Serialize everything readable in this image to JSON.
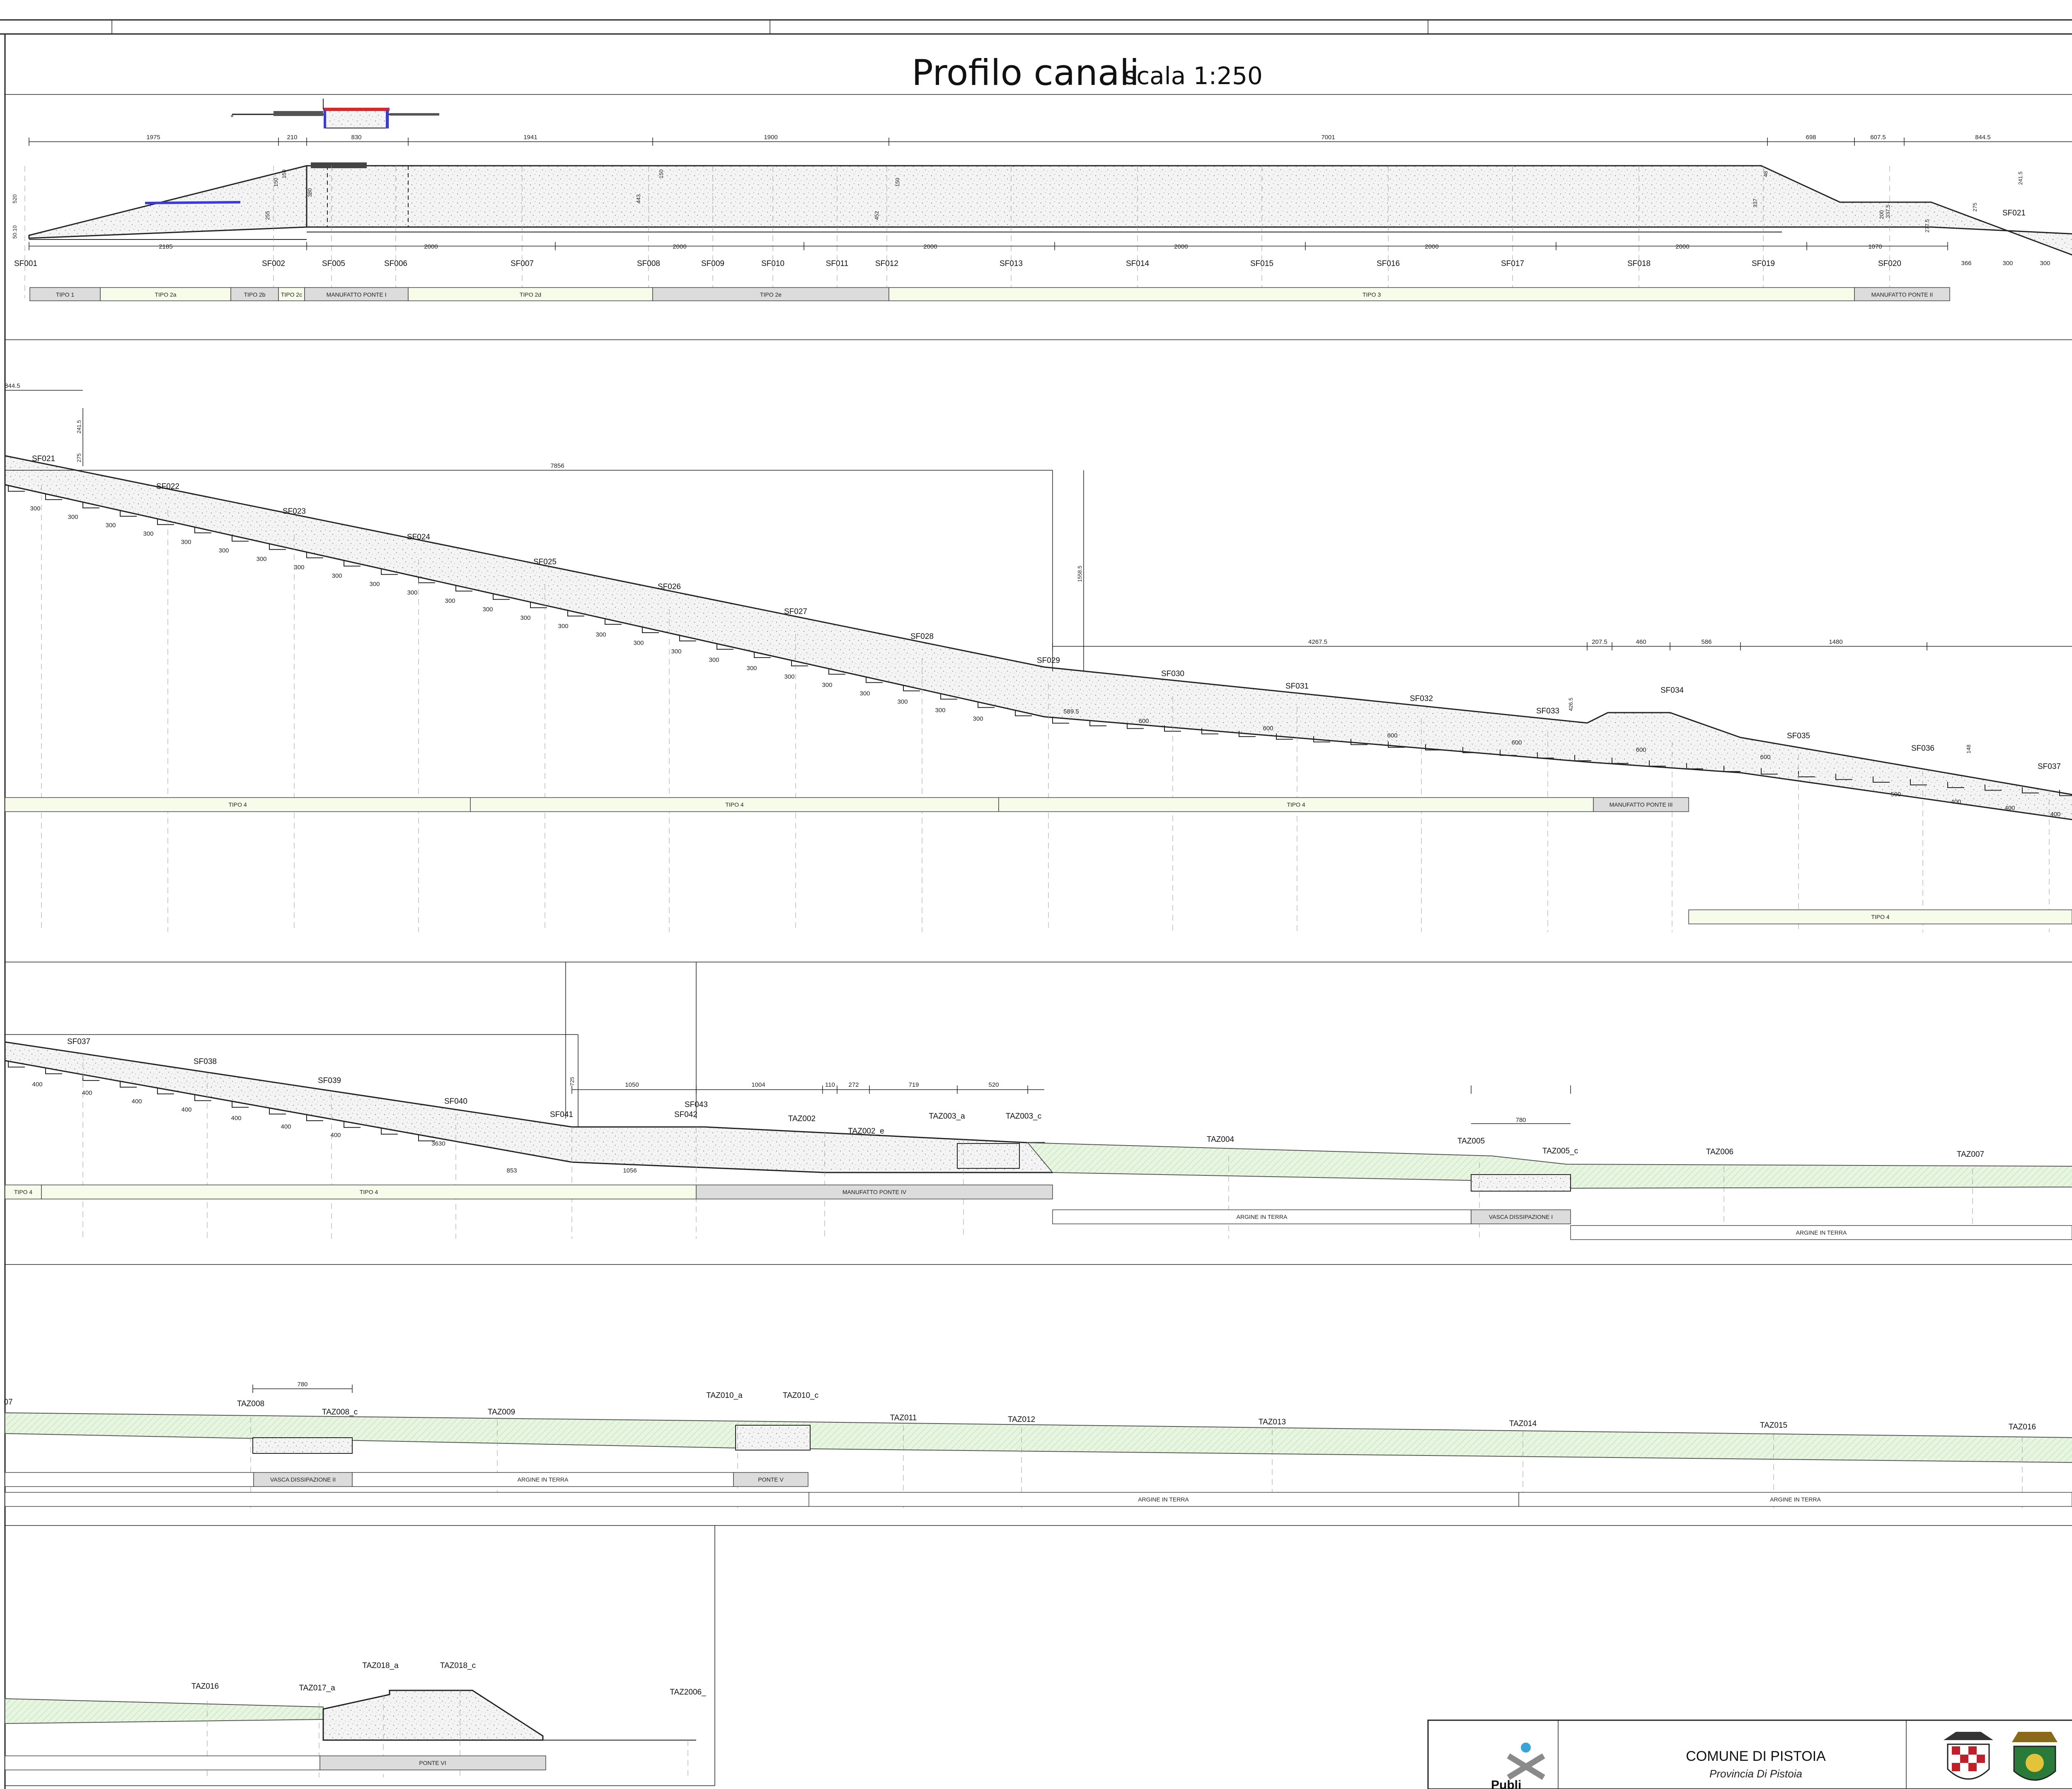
{
  "title": {
    "main": "Profilo canali",
    "scale": "scala 1:250"
  },
  "colors": {
    "concrete": "#f2f2f2",
    "embankment": "#e6f5df",
    "water": "#3a3ae0",
    "steel_red": "#d22b2b",
    "band_fill": "#dcdcdc",
    "band_fill_light": "#f7fbe9"
  },
  "title_block": {
    "municipality": "COMUNE DI PISTOIA",
    "province": "Provincia Di Pistoia",
    "logo_text": "Publi",
    "icons": [
      "publiacqua-logo",
      "pistoia-coat-of-arms-icon",
      "province-coat-of-arms-icon"
    ]
  },
  "rows": [
    {
      "id": "row1",
      "stations": [
        "SF001",
        "SF002",
        "SF005",
        "SF006",
        "SF007",
        "SF008",
        "SF009",
        "SF010",
        "SF011",
        "SF012",
        "SF013",
        "SF014",
        "SF015",
        "SF016",
        "SF017",
        "SF018",
        "SF019",
        "SF020"
      ],
      "top_dims": [
        "1975",
        "210",
        "830",
        "1941",
        "1900",
        "7001",
        "698",
        "607.5",
        "844.5"
      ],
      "bottom_dims": [
        "2185",
        "2000",
        "2000",
        "2000",
        "2000",
        "2000",
        "2000",
        "1070"
      ],
      "misc_dims": [
        "366",
        "300",
        "300"
      ],
      "vertical_dims": [
        "520",
        "50.10",
        "150",
        "380",
        "255",
        "150",
        "443",
        "150",
        "452",
        "150",
        "337",
        "48",
        "200",
        "337.5",
        "277.5",
        "275",
        "241.5"
      ],
      "extra_labels": [
        "SF021"
      ],
      "bands": [
        "TIPO 1",
        "TIPO 2a",
        "TIPO 2b",
        "TIPO 2c",
        "MANUFATTO PONTE I",
        "TIPO 2d",
        "TIPO 2e",
        "TIPO 3",
        "MANUFATTO PONTE II"
      ]
    },
    {
      "id": "row2",
      "stations": [
        "SF021",
        "SF022",
        "SF023",
        "SF024",
        "SF025",
        "SF026",
        "SF027",
        "SF028",
        "SF029",
        "SF030",
        "SF031",
        "SF032",
        "SF033",
        "SF034",
        "SF035",
        "SF036",
        "SF037"
      ],
      "top_dims": [
        "844.5",
        "7856",
        "4267.5",
        "207.5",
        "460",
        "586",
        "1480"
      ],
      "step_dims": [
        "300",
        "600",
        "589.5",
        "400",
        "590"
      ],
      "vertical_dims": [
        "241.5",
        "275",
        "1558.5",
        "426.5",
        "148"
      ],
      "bands": [
        "TIPO 4",
        "TIPO 4",
        "TIPO 4",
        "MANUFATTO PONTE III",
        "TIPO 4"
      ]
    },
    {
      "id": "row3",
      "stations": [
        "SF037",
        "SF038",
        "SF039",
        "SF040",
        "SF041",
        "SF042",
        "SF043",
        "TAZ002",
        "TAZ002_e",
        "TAZ003_a",
        "TAZ003_c",
        "TAZ004",
        "TAZ005",
        "TAZ005_c",
        "TAZ006",
        "TAZ007"
      ],
      "top_dims": [
        "1050",
        "1004",
        "110",
        "272",
        "719",
        "520",
        "780"
      ],
      "bottom_dims": [
        "853",
        "1056"
      ],
      "step_dims": [
        "400",
        "3630"
      ],
      "vertical_dims": [
        "725"
      ],
      "bands": [
        "TIPO 4",
        "TIPO 4",
        "MANUFATTO PONTE IV",
        "ARGINE IN TERRA",
        "VASCA DISSIPAZIONE I",
        "ARGINE IN TERRA"
      ]
    },
    {
      "id": "row4",
      "stations": [
        "07",
        "TAZ008",
        "TAZ008_c",
        "TAZ009",
        "TAZ010_a",
        "TAZ010_c",
        "TAZ011",
        "TAZ012",
        "TAZ013",
        "TAZ014",
        "TAZ015",
        "TAZ016"
      ],
      "top_dims": [
        "780"
      ],
      "bands": [
        "VASCA DISSIPAZIONE II",
        "ARGINE IN TERRA",
        "PONTE V",
        "ARGINE IN TERRA",
        "ARGINE IN TERRA"
      ]
    },
    {
      "id": "row5",
      "stations": [
        "TAZ016",
        "TAZ017_a",
        "TAZ018_a",
        "TAZ018_c",
        "TAZ2006_"
      ],
      "bands": [
        "PONTE VI"
      ]
    }
  ]
}
